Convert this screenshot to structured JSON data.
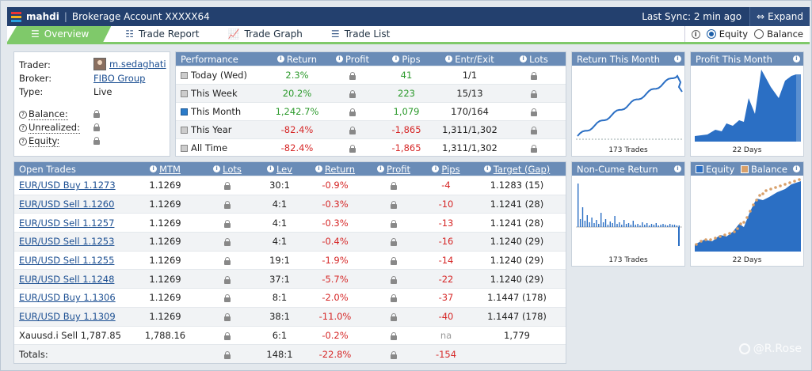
{
  "header": {
    "brand": "mahdi",
    "separator": "|",
    "account": "Brokerage Account XXXXX64",
    "sync": "Last Sync: 2 min ago",
    "expand": "Expand"
  },
  "tabs": [
    {
      "label": "Overview"
    },
    {
      "label": "Trade Report"
    },
    {
      "label": "Trade Graph"
    },
    {
      "label": "Trade List"
    }
  ],
  "view_toggle": {
    "info": "i",
    "equity": "Equity",
    "balance": "Balance",
    "selected": "Equity"
  },
  "trader": {
    "trader_label": "Trader:",
    "trader_value": "m.sedaghati",
    "broker_label": "Broker:",
    "broker_value": "FIBO Group",
    "type_label": "Type:",
    "type_value": "Live",
    "balance_label": "Balance:",
    "unrealized_label": "Unrealized:",
    "equity_label": "Equity:"
  },
  "performance": {
    "headers": [
      "Performance",
      "Return",
      "Profit",
      "Pips",
      "Entr/Exit",
      "Lots"
    ],
    "rows": [
      {
        "label": "Today (Wed)",
        "return": "2.3%",
        "pips": "41",
        "entr": "1/1",
        "sign": "pos"
      },
      {
        "label": "This Week",
        "return": "20.2%",
        "pips": "223",
        "entr": "15/13",
        "sign": "pos"
      },
      {
        "label": "This Month",
        "return": "1,242.7%",
        "pips": "1,079",
        "entr": "170/164",
        "sign": "pos"
      },
      {
        "label": "This Year",
        "return": "-82.4%",
        "pips": "-1,865",
        "entr": "1,311/1,302",
        "sign": "neg"
      },
      {
        "label": "All Time",
        "return": "-82.4%",
        "pips": "-1,865",
        "entr": "1,311/1,302",
        "sign": "neg"
      }
    ]
  },
  "open_trades": {
    "headers": [
      "Open Trades",
      "MTM",
      "Lots",
      "Lev",
      "Return",
      "Profit",
      "Pips",
      "Target (Gap)"
    ],
    "rows": [
      {
        "trade": "EUR/USD Buy 1.1273",
        "mtm": "1.1269",
        "lev": "30:1",
        "return": "-0.9%",
        "pips": "-4",
        "target": "1.1283 (15)"
      },
      {
        "trade": "EUR/USD Sell 1.1260",
        "mtm": "1.1269",
        "lev": "4:1",
        "return": "-0.3%",
        "pips": "-10",
        "target": "1.1241 (28)"
      },
      {
        "trade": "EUR/USD Sell 1.1257",
        "mtm": "1.1269",
        "lev": "4:1",
        "return": "-0.3%",
        "pips": "-13",
        "target": "1.1241 (28)"
      },
      {
        "trade": "EUR/USD Sell 1.1253",
        "mtm": "1.1269",
        "lev": "4:1",
        "return": "-0.4%",
        "pips": "-16",
        "target": "1.1240 (29)"
      },
      {
        "trade": "EUR/USD Sell 1.1255",
        "mtm": "1.1269",
        "lev": "19:1",
        "return": "-1.9%",
        "pips": "-14",
        "target": "1.1240 (29)"
      },
      {
        "trade": "EUR/USD Sell 1.1248",
        "mtm": "1.1269",
        "lev": "37:1",
        "return": "-5.7%",
        "pips": "-22",
        "target": "1.1240 (29)"
      },
      {
        "trade": "EUR/USD Buy 1.1306",
        "mtm": "1.1269",
        "lev": "8:1",
        "return": "-2.0%",
        "pips": "-37",
        "target": "1.1447 (178)"
      },
      {
        "trade": "EUR/USD Buy 1.1309",
        "mtm": "1.1269",
        "lev": "38:1",
        "return": "-11.0%",
        "pips": "-40",
        "target": "1.1447 (178)"
      },
      {
        "trade": "Xauusd.i Sell 1,787.85",
        "mtm": "1,788.16",
        "lev": "6:1",
        "return": "-0.2%",
        "pips": "na",
        "target": "1,779"
      }
    ],
    "totals": {
      "label": "Totals:",
      "lev": "148:1",
      "return": "-22.8%",
      "pips": "-154"
    }
  },
  "charts": {
    "return_month": {
      "title": "Return This Month",
      "caption": "173 Trades"
    },
    "profit_month": {
      "title": "Profit This Month",
      "caption": "22 Days"
    },
    "non_cume": {
      "title": "Non-Cume Return",
      "caption": "173 Trades"
    },
    "equity_balance": {
      "equity_label": "Equity",
      "balance_label": "Balance",
      "caption": "22 Days"
    }
  },
  "watermark": "@R.Rose",
  "colors": {
    "header_bg": "#23406e",
    "panel_header": "#6a8cb7",
    "tab_active": "#7fc96a",
    "positive": "#2c9a2c",
    "negative": "#d62828",
    "chart_blue": "#2b6fc4",
    "balance_dot": "#d8a06a"
  }
}
